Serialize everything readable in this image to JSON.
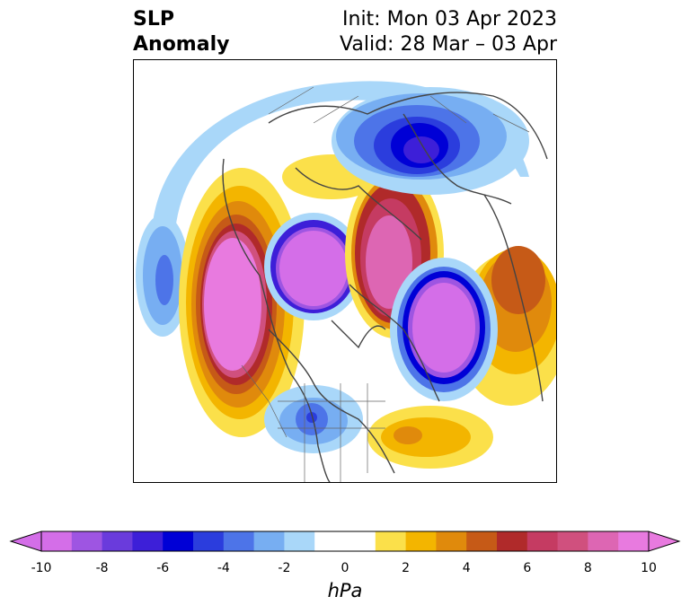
{
  "header": {
    "title_line1": "SLP",
    "title_line2": "Anomaly",
    "init_text": "Init: Mon 03 Apr 2023",
    "valid_text": "Valid: 28 Mar – 03 Apr"
  },
  "map": {
    "projection": "north-polar-stereographic",
    "field": "sea level pressure anomaly",
    "features": [
      {
        "name": "pacific-high-anomaly",
        "sign": "positive",
        "peak_hpa": 10
      },
      {
        "name": "north-pacific-low-anomaly",
        "sign": "negative",
        "peak_hpa": -6
      },
      {
        "name": "arctic-canada-low-anomaly",
        "sign": "negative",
        "peak_hpa": -10
      },
      {
        "name": "greenland-arctic-high-anomaly",
        "sign": "positive",
        "peak_hpa": 9
      },
      {
        "name": "north-atlantic-low-anomaly",
        "sign": "negative",
        "peak_hpa": -10
      },
      {
        "name": "siberia-low-anomaly",
        "sign": "negative",
        "peak_hpa": -7
      },
      {
        "name": "eurasia-high-anomaly",
        "sign": "positive",
        "peak_hpa": 5
      },
      {
        "name": "western-us-low-anomaly",
        "sign": "negative",
        "peak_hpa": -6
      },
      {
        "name": "subtropical-atlantic-high-anomaly",
        "sign": "positive",
        "peak_hpa": 4
      }
    ]
  },
  "colorbar": {
    "unit_label": "hPa",
    "ticks": [
      "-10",
      "-8",
      "-6",
      "-4",
      "-2",
      "0",
      "2",
      "4",
      "6",
      "8",
      "10"
    ],
    "colors": [
      "#d46ee8",
      "#9e55e2",
      "#6a3bdc",
      "#3d1fd8",
      "#0000d6",
      "#2b3ddd",
      "#4d74e8",
      "#77aef2",
      "#a9d7f9",
      "#ffffff",
      "#ffffff",
      "#fbe04a",
      "#f3b500",
      "#e08a0c",
      "#c65a17",
      "#b02a2a",
      "#c53b62",
      "#d0507e",
      "#dd66b3",
      "#e87adf"
    ],
    "low_extend_color": "#d46ee8",
    "high_extend_color": "#e87adf"
  }
}
